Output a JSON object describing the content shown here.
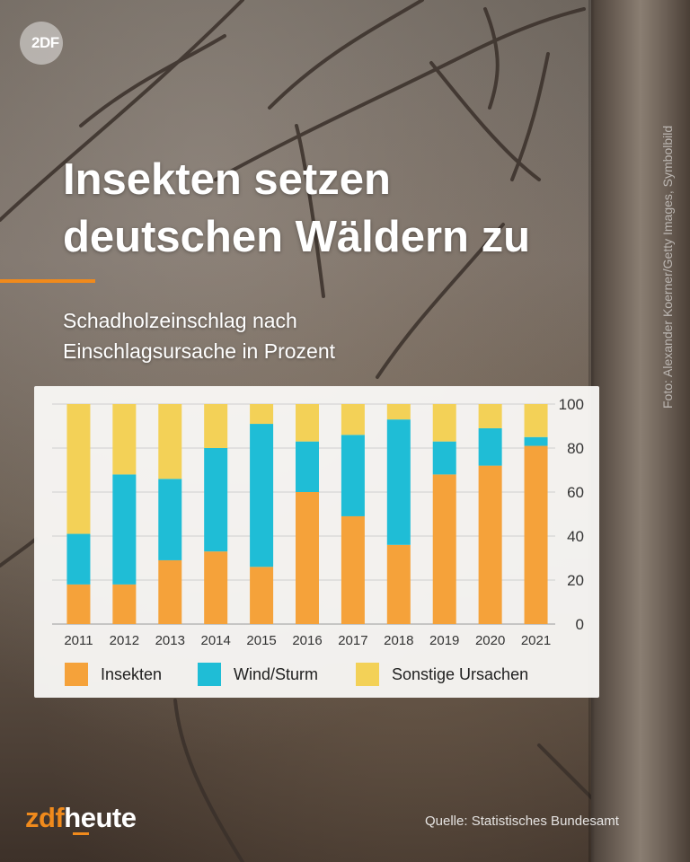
{
  "header": {
    "logo_text": "2DF",
    "title_line1": "Insekten setzen",
    "title_line2": "deutschen Wäldern zu",
    "subtitle_line1": "Schadholzeinschlag nach",
    "subtitle_line2": "Einschlagsursache in Prozent"
  },
  "photo_credit": "Foto: Alexander Koerner/Getty Images, Symbolbild",
  "footer": {
    "brand_zdf": "zdf",
    "brand_heute": "heute",
    "source": "Quelle: Statistisches Bundesamt"
  },
  "colors": {
    "insekten": "#f5a23a",
    "wind": "#1fbdd6",
    "sonstige": "#f3d157",
    "accent": "#f08a1c"
  },
  "chart_data": {
    "type": "bar",
    "stacked": true,
    "title": "",
    "xlabel": "",
    "ylabel": "",
    "ylim": [
      0,
      100
    ],
    "yticks": [
      0,
      20,
      40,
      60,
      80,
      100
    ],
    "y_axis_position": "right",
    "grid": true,
    "legend_position": "bottom",
    "categories": [
      "2011",
      "2012",
      "2013",
      "2014",
      "2015",
      "2016",
      "2017",
      "2018",
      "2019",
      "2020",
      "2021"
    ],
    "series": [
      {
        "name": "Insekten",
        "values": [
          18,
          18,
          29,
          33,
          26,
          60,
          49,
          36,
          68,
          72,
          81
        ]
      },
      {
        "name": "Wind/Sturm",
        "values": [
          23,
          50,
          37,
          47,
          65,
          23,
          37,
          57,
          15,
          17,
          4
        ]
      },
      {
        "name": "Sonstige Ursachen",
        "values": [
          59,
          32,
          34,
          20,
          9,
          17,
          14,
          7,
          17,
          11,
          15
        ]
      }
    ]
  }
}
